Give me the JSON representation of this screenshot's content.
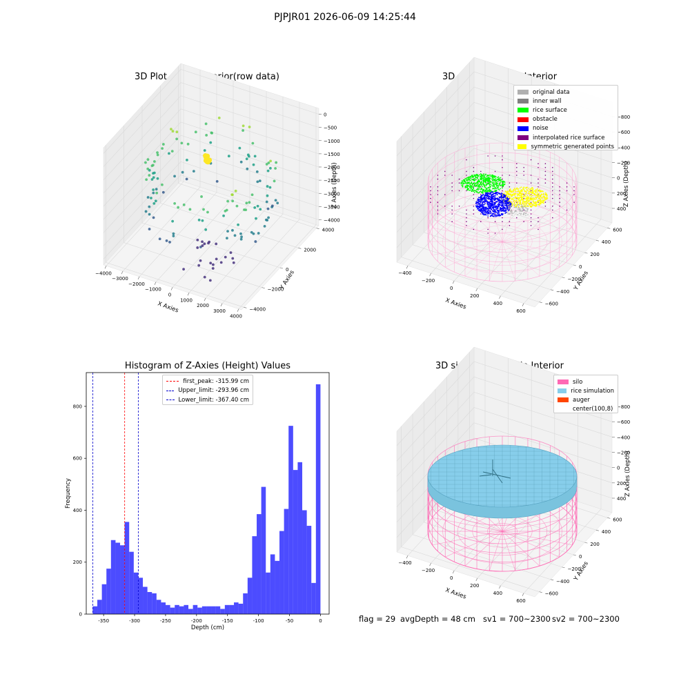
{
  "figure": {
    "suptitle": "PJPJR01 2026-06-09 14:25:44",
    "footer": {
      "flag": "flag = 29",
      "avg_depth": "avgDepth = 48 cm",
      "sv1": "sv1 = 700~2300",
      "sv2": "sv2 = 700~2300"
    }
  },
  "chart_data": [
    {
      "id": "raw",
      "type": "scatter",
      "projection": "3d",
      "title": "3D Plot of Silo Interior(row data)",
      "xlabel": "X Axies",
      "ylabel": "Y Axies",
      "zlabel": "Z Axies (Depth)",
      "xticks": [
        "−4000",
        "−3000",
        "−2000",
        "−1000",
        "0",
        "1000",
        "2000",
        "3000",
        "4000"
      ],
      "yticks": [
        "−4000",
        "−2000",
        "0",
        "2000",
        "4000"
      ],
      "zticks": [
        "0",
        "−500",
        "−1000",
        "−1500",
        "−2000",
        "−2500",
        "−3000",
        "−3500",
        "−4000"
      ],
      "colormap": [
        "#46327e",
        "#365c8d",
        "#277f8e",
        "#1fa187",
        "#4ac16d",
        "#a0da39",
        "#fde725"
      ],
      "grid": true
    },
    {
      "id": "classify",
      "type": "scatter",
      "projection": "3d",
      "title": "3D classify of Silo Interior",
      "xlabel": "X Axies",
      "ylabel": "Y Axies",
      "zlabel": "Z Axies (Depth)",
      "xticks": [
        "−400",
        "−200",
        "0",
        "200",
        "400",
        "600"
      ],
      "yticks": [
        "−600",
        "−400",
        "−200",
        "0",
        "200",
        "400",
        "600"
      ],
      "zticks": [
        "400",
        "200",
        "0",
        "−200",
        "−400",
        "−600",
        "−800"
      ],
      "legend_position": "top-right",
      "series": [
        {
          "name": "original data",
          "color": "#b0b0b0"
        },
        {
          "name": "inner wall",
          "color": "#808080"
        },
        {
          "name": "rice surface",
          "color": "#00ff00"
        },
        {
          "name": "obstacle",
          "color": "#ff0000"
        },
        {
          "name": "noise",
          "color": "#0000ff"
        },
        {
          "name": "interpolated rice surface",
          "color": "#800080"
        },
        {
          "name": "symmetric generated points",
          "color": "#ffff00"
        }
      ],
      "grid": true
    },
    {
      "id": "hist",
      "type": "bar",
      "title": "Histogram of Z-Axies (Height) Values",
      "xlabel": "Depth (cm)",
      "ylabel": "Frequency",
      "xlim": [
        -378,
        14
      ],
      "ylim": [
        0,
        930
      ],
      "xticks": [
        -350,
        -300,
        -250,
        -200,
        -150,
        -100,
        -50,
        0
      ],
      "yticks": [
        0,
        200,
        400,
        600,
        800
      ],
      "bin_start": -367.5,
      "bin_width": 7.35,
      "values": [
        30,
        55,
        115,
        175,
        285,
        275,
        265,
        355,
        240,
        160,
        140,
        105,
        85,
        80,
        55,
        45,
        35,
        25,
        35,
        30,
        35,
        20,
        35,
        25,
        30,
        30,
        30,
        30,
        20,
        35,
        35,
        45,
        40,
        80,
        140,
        300,
        385,
        490,
        160,
        230,
        205,
        320,
        405,
        725,
        555,
        585,
        400,
        340,
        120,
        885
      ],
      "color": "#0000ff",
      "opacity": 0.7,
      "vlines": [
        {
          "label": "first_peak: -315.99 cm",
          "x": -315.99,
          "color": "#ff0000"
        },
        {
          "label": "Upper_limit: -293.96 cm",
          "x": -293.96,
          "color": "#0000cc"
        },
        {
          "label": "Lower_limit: -367.40 cm",
          "x": -367.4,
          "color": "#0000cc"
        }
      ],
      "legend_position": "top-center"
    },
    {
      "id": "sim",
      "type": "surface",
      "projection": "3d",
      "title": "3D simulation of Silo Interior",
      "xlabel": "X Axies",
      "ylabel": "Y Axies",
      "zlabel": "Z Axies (Depth)",
      "xticks": [
        "−400",
        "−200",
        "0",
        "200",
        "400",
        "600"
      ],
      "yticks": [
        "−600",
        "−400",
        "−200",
        "0",
        "200",
        "400",
        "600"
      ],
      "zticks": [
        "400",
        "200",
        "0",
        "−200",
        "−400",
        "−600",
        "−800"
      ],
      "legend_position": "top-right",
      "series": [
        {
          "name": "silo",
          "color": "#ff69b4"
        },
        {
          "name": "rice simulation",
          "color": "#87ceeb"
        },
        {
          "name": "auger",
          "color": "#ff4500"
        },
        {
          "name": "center(100,8)",
          "color": "#ffffff"
        }
      ],
      "grid": true
    }
  ]
}
